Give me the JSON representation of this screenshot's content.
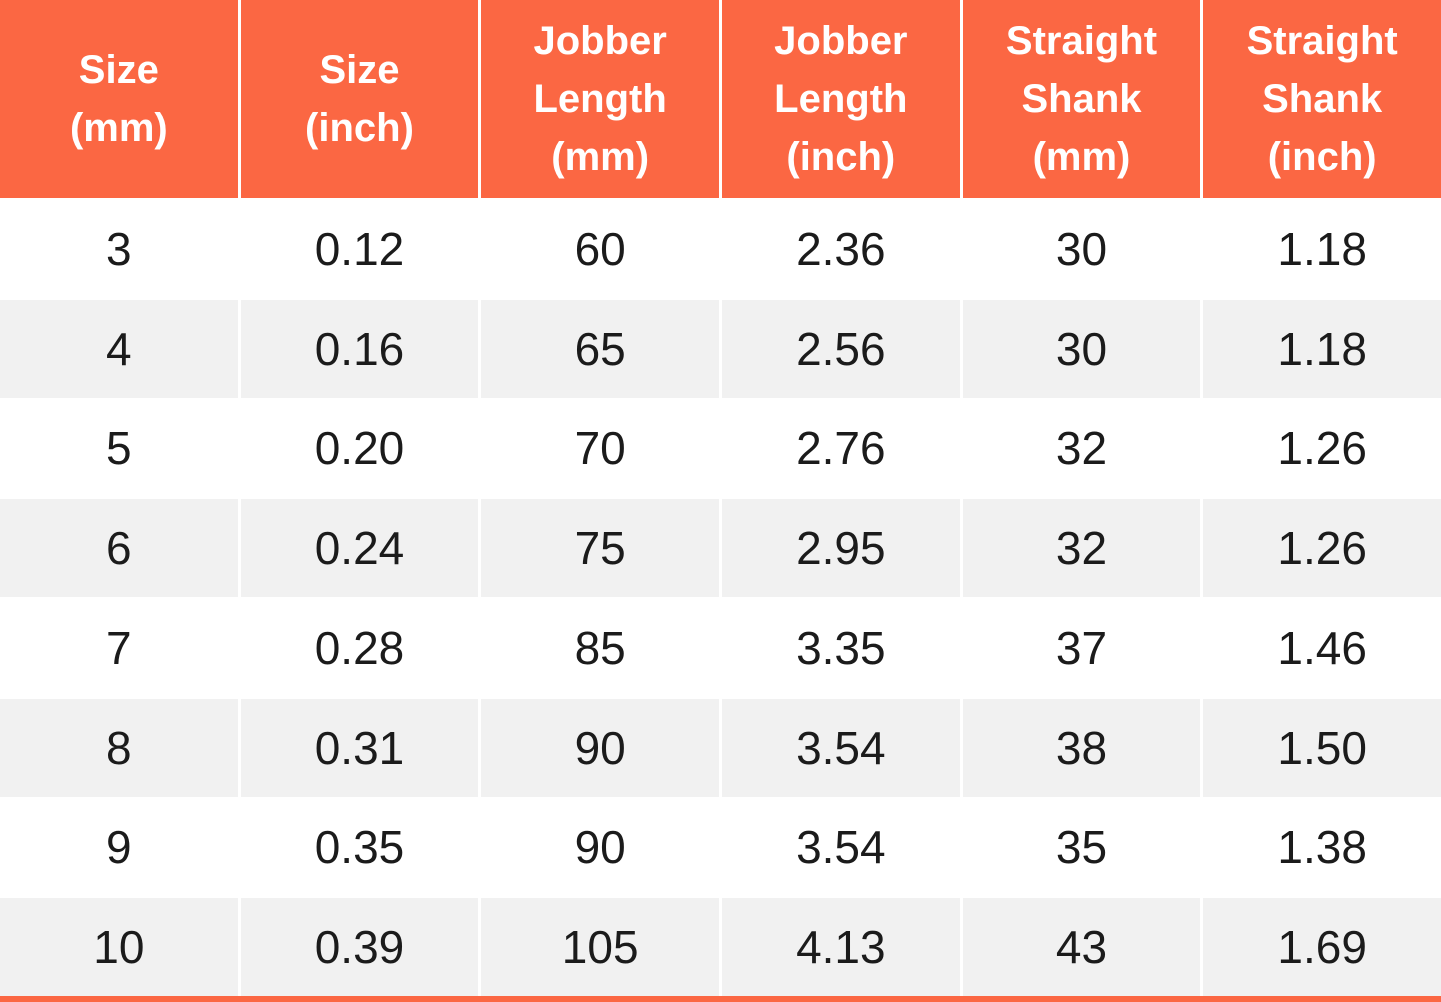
{
  "colors": {
    "accent": "#FB6743",
    "stripe": "#F1F1F1",
    "header_text": "#FFFFFF",
    "body_text": "#1B1B1B"
  },
  "table": {
    "headers": [
      {
        "label": "Size\n(mm)"
      },
      {
        "label": "Size\n(inch)"
      },
      {
        "label": "Jobber\nLength\n(mm)"
      },
      {
        "label": "Jobber\nLength\n(inch)"
      },
      {
        "label": "Straight\nShank\n(mm)"
      },
      {
        "label": "Straight\nShank\n(inch)"
      }
    ],
    "rows": [
      [
        "3",
        "0.12",
        "60",
        "2.36",
        "30",
        "1.18"
      ],
      [
        "4",
        "0.16",
        "65",
        "2.56",
        "30",
        "1.18"
      ],
      [
        "5",
        "0.20",
        "70",
        "2.76",
        "32",
        "1.26"
      ],
      [
        "6",
        "0.24",
        "75",
        "2.95",
        "32",
        "1.26"
      ],
      [
        "7",
        "0.28",
        "85",
        "3.35",
        "37",
        "1.46"
      ],
      [
        "8",
        "0.31",
        "90",
        "3.54",
        "38",
        "1.50"
      ],
      [
        "9",
        "0.35",
        "90",
        "3.54",
        "35",
        "1.38"
      ],
      [
        "10",
        "0.39",
        "105",
        "4.13",
        "43",
        "1.69"
      ]
    ]
  },
  "chart_data": {
    "type": "table",
    "columns": [
      "Size (mm)",
      "Size (inch)",
      "Jobber Length (mm)",
      "Jobber Length (inch)",
      "Straight Shank (mm)",
      "Straight Shank (inch)"
    ],
    "rows": [
      [
        3,
        0.12,
        60,
        2.36,
        30,
        1.18
      ],
      [
        4,
        0.16,
        65,
        2.56,
        30,
        1.18
      ],
      [
        5,
        0.2,
        70,
        2.76,
        32,
        1.26
      ],
      [
        6,
        0.24,
        75,
        2.95,
        32,
        1.26
      ],
      [
        7,
        0.28,
        85,
        3.35,
        37,
        1.46
      ],
      [
        8,
        0.31,
        90,
        3.54,
        38,
        1.5
      ],
      [
        9,
        0.35,
        90,
        3.54,
        35,
        1.38
      ],
      [
        10,
        0.39,
        105,
        4.13,
        43,
        1.69
      ]
    ],
    "title": "",
    "layout_hints": {
      "header_background": "#FB6743",
      "row_striping": [
        "#FFFFFF",
        "#F1F1F1"
      ],
      "bottom_border": "#FB6743"
    }
  }
}
